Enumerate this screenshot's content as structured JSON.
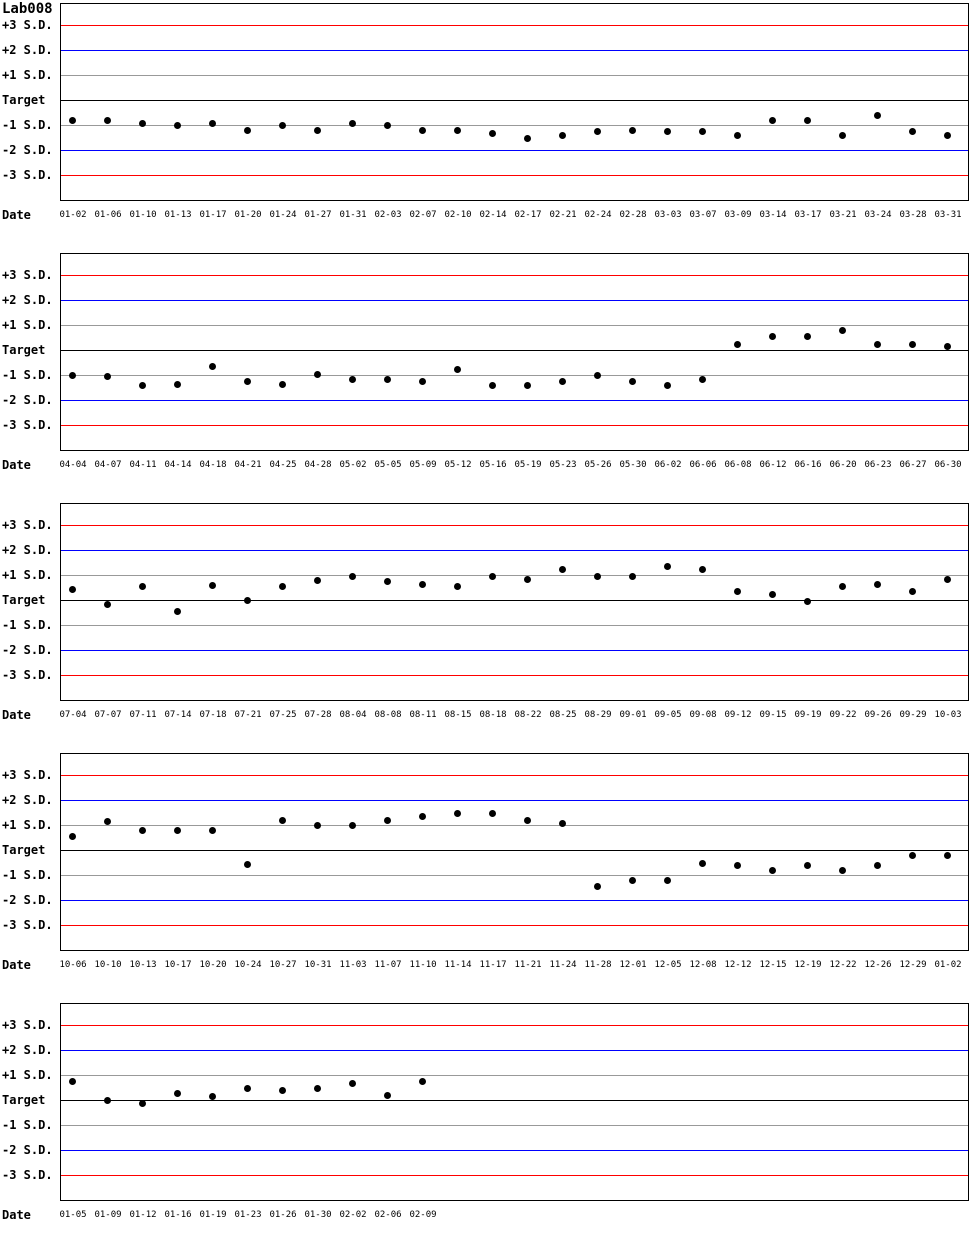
{
  "page": {
    "title": "Lab008",
    "date_axis_label": "Date"
  },
  "axis": {
    "labels": [
      "+3 S.D.",
      "+2 S.D.",
      "+1 S.D.",
      "Target",
      "-1 S.D.",
      "-2 S.D.",
      "-3 S.D."
    ],
    "sd_levels": [
      3,
      2,
      1,
      0,
      -1,
      -2,
      -3
    ]
  },
  "colors": {
    "sd3_line": "#ff0000",
    "sd2_line": "#0000ff",
    "sd1_line": "#999999",
    "target_line": "#000000",
    "point_color": "#000000",
    "plot_border": "#000000"
  },
  "chart_data": [
    {
      "type": "scatter",
      "xlabel": "Date",
      "marker": "filled-circle",
      "y_unit": "standard deviations from target",
      "y_gridlines": [
        3,
        2,
        1,
        0,
        -1,
        -2,
        -3
      ],
      "ylim": [
        -4,
        4
      ],
      "x": [
        "01-02",
        "01-06",
        "01-10",
        "01-13",
        "01-17",
        "01-20",
        "01-24",
        "01-27",
        "01-31",
        "02-03",
        "02-07",
        "02-10",
        "02-14",
        "02-17",
        "02-21",
        "02-24",
        "02-28",
        "03-03",
        "03-07",
        "03-09",
        "03-14",
        "03-17",
        "03-21",
        "03-24",
        "03-28",
        "03-31"
      ],
      "y_sd": [
        -0.8,
        -0.8,
        -0.9,
        -1.0,
        -0.9,
        -1.2,
        -1.0,
        -1.2,
        -0.9,
        -1.0,
        -1.2,
        -1.2,
        -1.3,
        -1.5,
        -1.4,
        -1.25,
        -1.2,
        -1.25,
        -1.25,
        -1.4,
        -0.8,
        -0.8,
        -1.4,
        -0.6,
        -1.25,
        -1.4
      ]
    },
    {
      "type": "scatter",
      "xlabel": "Date",
      "marker": "filled-circle",
      "y_unit": "standard deviations from target",
      "y_gridlines": [
        3,
        2,
        1,
        0,
        -1,
        -2,
        -3
      ],
      "ylim": [
        -4,
        4
      ],
      "x": [
        "04-04",
        "04-07",
        "04-11",
        "04-14",
        "04-18",
        "04-21",
        "04-25",
        "04-28",
        "05-02",
        "05-05",
        "05-09",
        "05-12",
        "05-16",
        "05-19",
        "05-23",
        "05-26",
        "05-30",
        "06-02",
        "06-06",
        "06-08",
        "06-12",
        "06-16",
        "06-20",
        "06-23",
        "06-27",
        "06-30"
      ],
      "y_sd": [
        -1.0,
        -1.05,
        -1.4,
        -1.35,
        -0.65,
        -1.25,
        -1.35,
        -0.95,
        -1.15,
        -1.15,
        -1.25,
        -0.75,
        -1.4,
        -1.4,
        -1.25,
        -1.0,
        -1.25,
        -1.4,
        -1.15,
        0.25,
        0.55,
        0.55,
        0.8,
        0.25,
        0.25,
        0.15
      ]
    },
    {
      "type": "scatter",
      "xlabel": "Date",
      "marker": "filled-circle",
      "y_unit": "standard deviations from target",
      "y_gridlines": [
        3,
        2,
        1,
        0,
        -1,
        -2,
        -3
      ],
      "ylim": [
        -4,
        4
      ],
      "x": [
        "07-04",
        "07-07",
        "07-11",
        "07-14",
        "07-18",
        "07-21",
        "07-25",
        "07-28",
        "08-04",
        "08-08",
        "08-11",
        "08-15",
        "08-18",
        "08-22",
        "08-25",
        "08-29",
        "09-01",
        "09-05",
        "09-08",
        "09-12",
        "09-15",
        "09-19",
        "09-22",
        "09-26",
        "09-29",
        "10-03"
      ],
      "y_sd": [
        0.45,
        -0.15,
        0.55,
        -0.45,
        0.6,
        0.0,
        0.55,
        0.8,
        0.95,
        0.75,
        0.65,
        0.55,
        0.95,
        0.85,
        1.25,
        0.95,
        0.95,
        1.35,
        1.25,
        0.35,
        0.25,
        -0.05,
        0.55,
        0.65,
        0.35,
        0.85
      ]
    },
    {
      "type": "scatter",
      "xlabel": "Date",
      "marker": "filled-circle",
      "y_unit": "standard deviations from target",
      "y_gridlines": [
        3,
        2,
        1,
        0,
        -1,
        -2,
        -3
      ],
      "ylim": [
        -4,
        4
      ],
      "x": [
        "10-06",
        "10-10",
        "10-13",
        "10-17",
        "10-20",
        "10-24",
        "10-27",
        "10-31",
        "11-03",
        "11-07",
        "11-10",
        "11-14",
        "11-17",
        "11-21",
        "11-24",
        "11-28",
        "12-01",
        "12-05",
        "12-08",
        "12-12",
        "12-15",
        "12-19",
        "12-22",
        "12-26",
        "12-29",
        "01-02"
      ],
      "y_sd": [
        0.55,
        1.15,
        0.8,
        0.8,
        0.8,
        -0.55,
        1.2,
        1.0,
        1.0,
        1.2,
        1.35,
        1.5,
        1.5,
        1.2,
        1.1,
        -1.45,
        -1.2,
        -1.2,
        -0.5,
        -0.6,
        -0.8,
        -0.6,
        -0.8,
        -0.6,
        -0.2,
        -0.2
      ]
    },
    {
      "type": "scatter",
      "xlabel": "Date",
      "marker": "filled-circle",
      "y_unit": "standard deviations from target",
      "y_gridlines": [
        3,
        2,
        1,
        0,
        -1,
        -2,
        -3
      ],
      "ylim": [
        -4,
        4
      ],
      "x": [
        "01-05",
        "01-09",
        "01-12",
        "01-16",
        "01-19",
        "01-23",
        "01-26",
        "01-30",
        "02-02",
        "02-06",
        "02-09"
      ],
      "y_sd": [
        0.75,
        0.0,
        -0.1,
        0.3,
        0.15,
        0.5,
        0.4,
        0.5,
        0.7,
        0.2,
        0.75
      ]
    }
  ]
}
